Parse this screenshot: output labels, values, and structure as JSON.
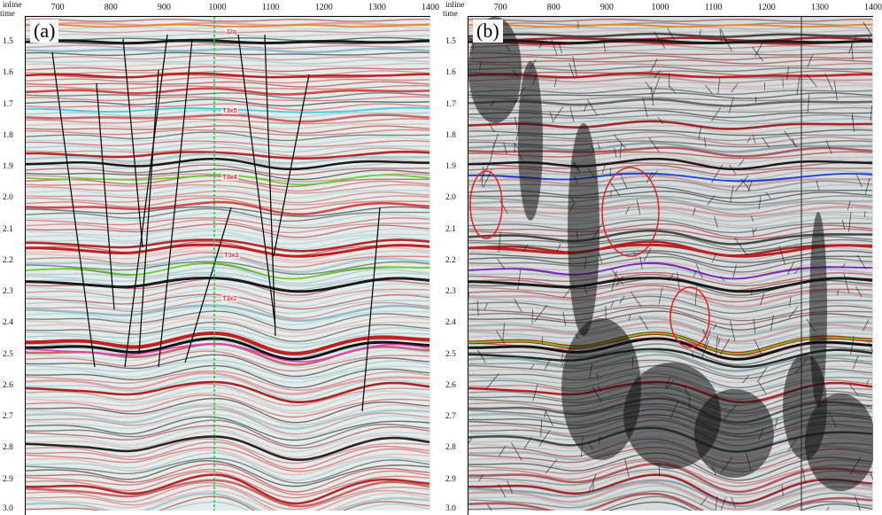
{
  "axis": {
    "inline_label": "inline",
    "time_label": "time",
    "inline_ticks": [
      "700",
      "800",
      "900",
      "1000",
      "1100",
      "1200",
      "1300",
      "1400"
    ],
    "time_ticks": [
      "1.5",
      "1.6",
      "1.7",
      "1.8",
      "1.9",
      "2.0",
      "2.1",
      "2.2",
      "2.3",
      "2.4",
      "2.5",
      "2.6",
      "2.7",
      "2.8",
      "2.9",
      "3.0"
    ]
  },
  "panel_a": {
    "letter": "(a)",
    "horizon_labels": [
      "J2q",
      "T3x5",
      "T3x4",
      "T3x3",
      "T3x2"
    ]
  },
  "panel_b": {
    "letter": "(b)"
  },
  "colors": {
    "horizon_orange": "#f08020",
    "horizon_cyan": "#38d0e8",
    "horizon_green": "#60d020",
    "horizon_blue": "#2040e0",
    "horizon_purple": "#8020c0",
    "horizon_pink": "#e040c0",
    "anomaly_circle": "#e02020",
    "well_line": "#20c040"
  }
}
